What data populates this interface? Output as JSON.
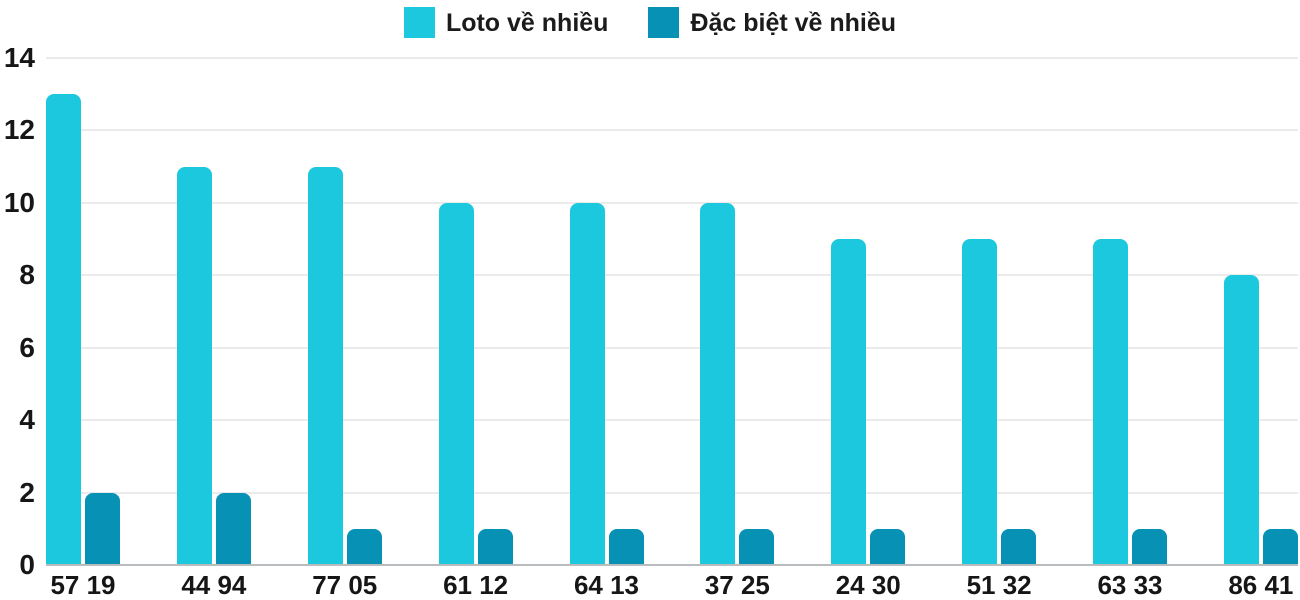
{
  "chart_data": {
    "type": "bar",
    "title": "",
    "xlabel": "",
    "ylabel": "",
    "categories": [
      "57 19",
      "44 94",
      "77 05",
      "61 12",
      "64 13",
      "37 25",
      "24 30",
      "51 32",
      "63 33",
      "86 41"
    ],
    "series": [
      {
        "name": "Loto về nhiều",
        "color": "#1cc8de",
        "values": [
          13,
          11,
          11,
          10,
          10,
          10,
          9,
          9,
          9,
          8
        ]
      },
      {
        "name": "Đặc biệt về nhiều",
        "color": "#0791b5",
        "values": [
          2,
          2,
          1,
          1,
          1,
          1,
          1,
          1,
          1,
          1
        ]
      }
    ],
    "ylim": [
      0,
      14
    ],
    "yticks": [
      0,
      2,
      4,
      6,
      8,
      10,
      12,
      14
    ],
    "grid": true,
    "legend_position": "top-center"
  },
  "colors": {
    "series_loto": "#1cc8de",
    "series_dacbiet": "#0791b5",
    "gridline": "#ebebeb",
    "baseline": "#b9bcbe",
    "text": "#161616",
    "background": "#ffffff"
  }
}
